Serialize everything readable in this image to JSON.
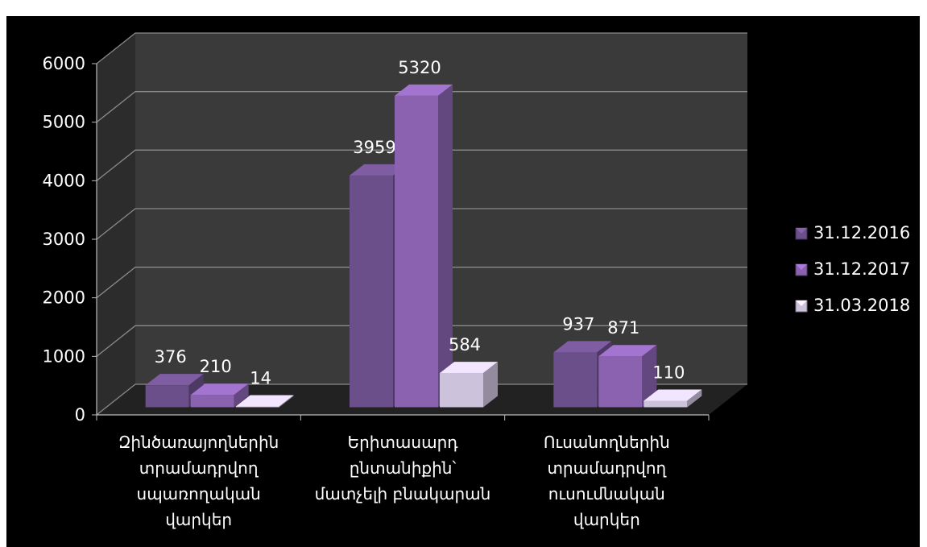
{
  "chart_data": {
    "type": "bar",
    "title": "",
    "xlabel": "",
    "ylabel": "",
    "ylim": [
      0,
      6000
    ],
    "yticks": [
      0,
      1000,
      2000,
      3000,
      4000,
      5000,
      6000
    ],
    "categories": [
      [
        "Զինծառայողներին",
        "տրամադրվող",
        "սպառողական",
        "վարկեր"
      ],
      [
        "Երիտասարդ",
        "ընտանիքին՝",
        "մատչելի բնակարան"
      ],
      [
        "Ուսանողներին",
        "տրամադրվող",
        "ուսումնական",
        "վարկեր"
      ]
    ],
    "series": [
      {
        "name": "31.12.2016",
        "values": [
          376,
          3959,
          937
        ],
        "color": "#6b4f8a"
      },
      {
        "name": "31.12.2017",
        "values": [
          210,
          5320,
          871
        ],
        "color": "#8a62b0"
      },
      {
        "name": "31.03.2018",
        "values": [
          14,
          584,
          110
        ],
        "color": "#cdc2dc"
      }
    ],
    "grid": true,
    "legend_position": "right",
    "style": "3d-clustered-column",
    "background": "#000000",
    "wall_color": "#3a3a3a"
  }
}
